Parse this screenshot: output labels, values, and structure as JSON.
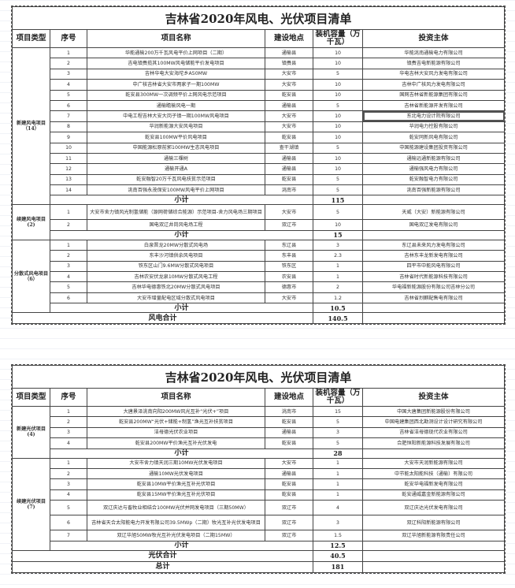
{
  "headers": [
    "项目类型",
    "序号",
    "项目名称",
    "建设地点",
    "装机容量（万千瓦）",
    "投资主体"
  ],
  "tables": [
    {
      "title": "吉林省2020年风电、光伏项目清单",
      "groups": [
        {
          "label": "新建风电项目（14）",
          "subtotal_label": "小计",
          "subtotal": "115",
          "rows": [
            [
              "1",
              "华能通榆200万千瓦风电平价上网项目（二期）",
              "通榆县",
              "10",
              "华能洮南通榆电力有限公司"
            ],
            [
              "2",
              "吉电镇赉揽其100MW风电储能平价发电项目",
              "镇赉县",
              "10",
              "镇赉吉电新能源有限公司"
            ],
            [
              "3",
              "吉林华电大安海坨乡A50MW",
              "大安市",
              "5",
              "华电吉林大安风力发电有限公司"
            ],
            [
              "4",
              "中广核吉林省大安市两家子一期100MW",
              "大安市",
              "10",
              "吉林中广核风力发电有限公司"
            ],
            [
              "5",
              "乾安县300MW一次调频平价上网风电示范项目",
              "乾安县",
              "10",
              "国网吉林省新能源集团有限公司"
            ],
            [
              "6",
              "通榆瞻榆风电一期",
              "通榆县",
              "5",
              "吉林省新能源开发有限公司"
            ],
            [
              "7",
              "中电工程吉林大安大岗子镇一期100MW风电项目",
              "大安市",
              "10",
              "东北电力设计院有限公司"
            ],
            [
              "8",
              "华润新能源大安风电项目",
              "大安市",
              "10",
              "华润电力控股有限公司"
            ],
            [
              "9",
              "乾安县100MW平价风电项目",
              "乾安县",
              "10",
              "乾安同新风电有限公司"
            ],
            [
              "10",
              "中国能源松原前郭100MW生态风电项目",
              "查干湖镇",
              "5",
              "中国能源建设集团投资有限公司"
            ],
            [
              "11",
              "通榆三棵树",
              "通榆县",
              "10",
              "通榆远通新能源有限公司"
            ],
            [
              "12",
              "通榆开通A",
              "通榆县",
              "10",
              "通榆强风电力有限公司"
            ],
            [
              "13",
              "乾安融智20万千瓦风电扶贫示范项目",
              "乾安县",
              "5",
              "乾安融智电力有限公司"
            ],
            [
              "14",
              "洮南百强永茂保安100MW风电平价上网项目",
              "洮南市",
              "5",
              "洮南百强新能源有限公司"
            ]
          ]
        },
        {
          "label": "续建风电项目(2)",
          "subtotal_label": "小计",
          "subtotal": "15",
          "rows": [
            [
              "1",
              "大安市舍力镇风光制氢储能（源网荷储综合能源）示范项目-舍力风电场三期项目",
              "大安市",
              "5",
              "天威（大安）新能源有限公司"
            ],
            [
              "2",
              "国电双辽井岗风电场工程",
              "双辽市",
              "10",
              "国电双辽发电有限公司"
            ]
          ]
        },
        {
          "label": "分散式风电项目（6）",
          "subtotal_label": "小计",
          "subtotal": "10.5",
          "rows": [
            [
              "1",
              "白泉晋龙20MW分散式风电场",
              "东辽县",
              "3",
              "东辽县未来风力发电有限公司"
            ],
            [
              "2",
              "东丰沙河镇供余风电项目",
              "东丰县",
              "2.3",
              "吉林东丰龙新发电有限公司"
            ],
            [
              "3",
              "铁东区山门9.6MW分散式风电项目",
              "铁东区",
              "1",
              "四平市中能风电有限公司"
            ],
            [
              "4",
              "吉林农安伏龙泉10MW分散式风电工程",
              "农安县",
              "1",
              "吉林省时代新能源科技有限公司"
            ],
            [
              "5",
              "吉林华电德惠铁北20MW分散式风电项目",
              "德惠市",
              "2",
              "华电福新能源股份有限公司吉林分公司"
            ],
            [
              "6",
              "大安市增量配电区域分散式风电项目",
              "大安市",
              "1.2",
              "吉林省烈麒配售电有限公司"
            ]
          ]
        }
      ],
      "totals": [
        {
          "label": "风电合计",
          "value": "140.5"
        }
      ]
    },
    {
      "title": "吉林省2020年风电、光伏项目清单",
      "groups": [
        {
          "label": "新建光伏项目(4)",
          "subtotal_label": "小计",
          "subtotal": "28",
          "rows": [
            [
              "1",
              "大唐景泽洮南向阳200MW风光互补“光伏+”项目",
              "洮南市",
              "15",
              "中国大唐集团新能源股份有限公司"
            ],
            [
              "2",
              "乾安县200MW“光伏+储能+制氢”渔光互补扶贫项目",
              "乾安县",
              "5",
              "中国电建集团西北勘测设计设计研究有限公司"
            ],
            [
              "3",
              "洁母德光伏农业项目",
              "通榆县",
              "3",
              "吉林省洁母德现代农业有限公司"
            ],
            [
              "4",
              "乾安县200MW平价渔光互补光伏发电",
              "乾安县",
              "5",
              "合肥恒阳新能源科技发展有限公司"
            ]
          ]
        },
        {
          "label": "续建光伏项目(7)",
          "subtotal_label": "小计",
          "subtotal": "12.5",
          "rows": [
            [
              "1",
              "大安市舍力镇天润三期10MW光伏发电项目",
              "大安市",
              "1",
              "大安市天润新能源有限公司"
            ],
            [
              "2",
              "通榆10MW光伏发电项目",
              "通榆县",
              "1",
              "中节能太阳能科技（通榆）有限公司"
            ],
            [
              "3",
              "乾安县10MW平价渔光互补光伏项目",
              "乾安县",
              "1",
              "乾安华电福新发电有限公司"
            ],
            [
              "4",
              "乾安县15MW平价渔光互补光伏项目",
              "乾安县",
              "1",
              "乾安通威嘉金新能源有限公司"
            ],
            [
              "5",
              "双辽庆达与畜牧业相结合100MW光伏并网发电项目（三期50MW）",
              "双辽市",
              "4",
              "双辽庆达光伏发电有限公司"
            ],
            [
              "6",
              "吉林省天合太阳能电力开发有限公司39.5MWp（二期）牧光互补光伏发电项目",
              "双辽市",
              "3",
              "双辽科阳新能源有限公司"
            ],
            [
              "7",
              "双辽华旭50MW牧光互补光伏发电项目（二期15MW）",
              "双辽市",
              "1.5",
              "双辽华旭新能源有限责任公司"
            ]
          ]
        }
      ],
      "totals": [
        {
          "label": "光伏合计",
          "value": "40.5"
        },
        {
          "label": "总计",
          "value": "181"
        }
      ]
    }
  ]
}
